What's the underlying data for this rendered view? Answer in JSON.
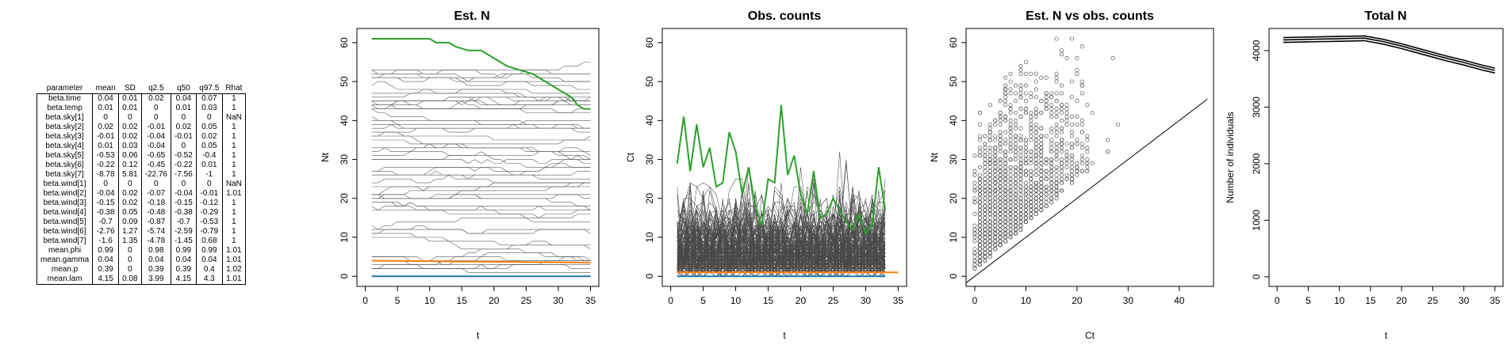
{
  "summary": {
    "headers": [
      "parameter",
      "mean",
      "SD",
      "q2.5",
      "q50",
      "q97.5",
      "Rhat"
    ],
    "rows": [
      [
        "beta.time",
        "0.04",
        "0.01",
        "0.02",
        "0.04",
        "0.07",
        "1"
      ],
      [
        "beta.temp",
        "0.01",
        "0.01",
        "0",
        "0.01",
        "0.03",
        "1"
      ],
      [
        "beta.sky[1]",
        "0",
        "0",
        "0",
        "0",
        "0",
        "NaN"
      ],
      [
        "beta.sky[2]",
        "0.02",
        "0.02",
        "-0.01",
        "0.02",
        "0.05",
        "1"
      ],
      [
        "beta.sky[3]",
        "-0.01",
        "0.02",
        "-0.04",
        "-0.01",
        "0.02",
        "1"
      ],
      [
        "beta.sky[4]",
        "0.01",
        "0.03",
        "-0.04",
        "0",
        "0.05",
        "1"
      ],
      [
        "beta.sky[5]",
        "-0.53",
        "0.06",
        "-0.65",
        "-0.52",
        "-0.4",
        "1"
      ],
      [
        "beta.sky[6]",
        "-0.22",
        "0.12",
        "-0.45",
        "-0.22",
        "0.01",
        "1"
      ],
      [
        "beta.sky[7]",
        "-8.78",
        "5.81",
        "-22.76",
        "-7.56",
        "-1",
        "1"
      ],
      [
        "beta.wind[1]",
        "0",
        "0",
        "0",
        "0",
        "0",
        "NaN"
      ],
      [
        "beta.wind[2]",
        "-0.04",
        "0.02",
        "-0.07",
        "-0.04",
        "-0.01",
        "1.01"
      ],
      [
        "beta.wind[3]",
        "-0.15",
        "0.02",
        "-0.18",
        "-0.15",
        "-0.12",
        "1"
      ],
      [
        "beta.wind[4]",
        "-0.38",
        "0.05",
        "-0.48",
        "-0.38",
        "-0.29",
        "1"
      ],
      [
        "beta.wind[5]",
        "-0.7",
        "0.09",
        "-0.87",
        "-0.7",
        "-0.53",
        "1"
      ],
      [
        "beta.wind[6]",
        "-2.76",
        "1.27",
        "-5.74",
        "-2.59",
        "-0.79",
        "1"
      ],
      [
        "beta.wind[7]",
        "-1.6",
        "1.35",
        "-4.78",
        "-1.45",
        "0.68",
        "1"
      ],
      [
        "mean.phi",
        "0.99",
        "0",
        "0.98",
        "0.99",
        "0.99",
        "1.01"
      ],
      [
        "mean.gamma",
        "0.04",
        "0",
        "0.04",
        "0.04",
        "0.04",
        "1.01"
      ],
      [
        "mean.p",
        "0.39",
        "0",
        "0.39",
        "0.39",
        "0.4",
        "1.02"
      ],
      [
        "mean.lam",
        "4.15",
        "0.08",
        "3.99",
        "4.15",
        "4.3",
        "1.01"
      ]
    ]
  },
  "chart_data": [
    {
      "type": "line",
      "title": "Est. N",
      "xlabel": "t",
      "ylabel": "Nt",
      "xlim": [
        0,
        35
      ],
      "ylim": [
        0,
        60
      ],
      "xticks": [
        0,
        5,
        10,
        15,
        20,
        25,
        30,
        35
      ],
      "yticks": [
        0,
        10,
        20,
        30,
        40,
        50,
        60
      ],
      "grey_line_count": 60,
      "colors": {
        "grey": "#5a5a5a",
        "highlight": "#2ca02c",
        "orange": "#ff7f0e",
        "blue": "#1f77b4"
      },
      "highlight_series": {
        "x": [
          1,
          5,
          10,
          11,
          13,
          14,
          16,
          18,
          20,
          22,
          24,
          26,
          28,
          30,
          32,
          33,
          34,
          35
        ],
        "y": [
          61,
          61,
          61,
          60,
          60,
          59,
          58,
          58,
          56,
          54,
          53,
          52,
          50,
          48,
          46,
          44,
          43,
          43
        ]
      },
      "orange_series": {
        "x": [
          1,
          35
        ],
        "y": [
          4,
          3.5
        ]
      },
      "blue_series": {
        "x": [
          1,
          35
        ],
        "y": [
          0,
          0
        ]
      }
    },
    {
      "type": "line",
      "title": "Obs. counts",
      "xlabel": "t",
      "ylabel": "Ct",
      "xlim": [
        0,
        35
      ],
      "ylim": [
        0,
        60
      ],
      "xticks": [
        0,
        5,
        10,
        15,
        20,
        25,
        30,
        35
      ],
      "yticks": [
        0,
        10,
        20,
        30,
        40,
        50,
        60
      ],
      "grey_line_count": 240,
      "colors": {
        "grey": "#4a4a4a",
        "highlight": "#2ca02c",
        "orange": "#ff7f0e",
        "blue": "#1f77b4"
      },
      "highlight_series": {
        "x": [
          1,
          2,
          3,
          4,
          5,
          6,
          7,
          8,
          9,
          10,
          11,
          12,
          13,
          14,
          15,
          16,
          17,
          18,
          19,
          20,
          21,
          22,
          23,
          24,
          25,
          26,
          27,
          28,
          29,
          30,
          31,
          32,
          33
        ],
        "y": [
          29,
          41,
          27,
          39,
          28,
          33,
          23,
          24,
          37,
          32,
          21,
          28,
          18,
          13,
          25,
          24,
          44,
          26,
          31,
          21,
          16,
          27,
          15,
          16,
          20,
          17,
          14,
          12,
          16,
          11,
          13,
          28,
          17
        ]
      },
      "orange_series": {
        "x": [
          1,
          35
        ],
        "y": [
          1,
          1
        ]
      },
      "blue_series": {
        "x": [
          1,
          33
        ],
        "y": [
          0,
          0
        ]
      }
    },
    {
      "type": "scatter",
      "title": "Est. N vs obs. counts",
      "xlabel": "Ct",
      "ylabel": "Nt",
      "xlim": [
        0,
        45
      ],
      "ylim": [
        0,
        60
      ],
      "xticks": [
        0,
        10,
        20,
        30,
        40
      ],
      "yticks": [
        0,
        10,
        20,
        30,
        40,
        50,
        60
      ],
      "reference_line": "y = x",
      "point_count": 1800
    },
    {
      "type": "line",
      "title": "Total N",
      "xlabel": "t",
      "ylabel": "Number of individuals",
      "xlim": [
        0,
        35
      ],
      "ylim": [
        0,
        4000
      ],
      "xticks": [
        0,
        5,
        10,
        15,
        20,
        25,
        30,
        35
      ],
      "yticks": [
        0,
        1000,
        2000,
        3000,
        4000
      ],
      "series": [
        {
          "x": [
            1,
            5,
            10,
            14,
            15,
            17,
            20,
            22,
            25,
            27,
            30,
            33,
            35
          ],
          "y": [
            4190,
            4200,
            4210,
            4220,
            4200,
            4160,
            4080,
            4020,
            3930,
            3870,
            3790,
            3700,
            3650
          ]
        }
      ],
      "band": {
        "lower_offset": -45,
        "upper_offset": 40
      }
    }
  ]
}
